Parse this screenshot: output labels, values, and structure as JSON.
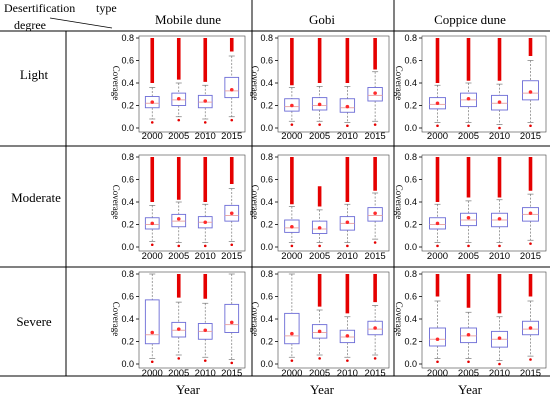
{
  "header": {
    "row_header_label": "Desertification degree",
    "row_header_line1": "Desertification",
    "row_header_line2": "degree",
    "col_header_label": "type"
  },
  "columns": [
    "Mobile dune",
    "Gobi",
    "Coppice dune"
  ],
  "rows": [
    "Light",
    "Moderate",
    "Severe"
  ],
  "y_axis_label": "Coverage",
  "x_axis_label": "Year",
  "colors": {
    "box": "#6b6bd6",
    "median": "#e8a0a0",
    "mean": "#ff2a2a",
    "outlier": "#e50000",
    "whisker": "#777777",
    "grid_line": "#000000",
    "axis": "#000000"
  },
  "chart_data": {
    "type": "box",
    "categories": [
      "2000",
      "2005",
      "2010",
      "2015"
    ],
    "ylim": [
      0.0,
      0.8
    ],
    "yticks": [
      "0.0",
      "0.2",
      "0.4",
      "0.6",
      "0.8"
    ],
    "ylabel": "Coverage",
    "xlabel": "Year",
    "panels": [
      {
        "row": "Light",
        "column": "Mobile dune",
        "boxes": [
          {
            "low": 0.08,
            "q1": 0.18,
            "median": 0.22,
            "mean": 0.23,
            "q3": 0.28,
            "high": 0.36,
            "outlier_from": 0.4,
            "outlier_to": 0.8
          },
          {
            "low": 0.1,
            "q1": 0.2,
            "median": 0.25,
            "mean": 0.26,
            "q3": 0.31,
            "high": 0.4,
            "outlier_from": 0.43,
            "outlier_to": 0.8
          },
          {
            "low": 0.08,
            "q1": 0.18,
            "median": 0.23,
            "mean": 0.24,
            "q3": 0.29,
            "high": 0.38,
            "outlier_from": 0.41,
            "outlier_to": 0.8
          },
          {
            "low": 0.1,
            "q1": 0.27,
            "median": 0.33,
            "mean": 0.34,
            "q3": 0.45,
            "high": 0.64,
            "outlier_from": 0.68,
            "outlier_to": 0.8
          }
        ]
      },
      {
        "row": "Light",
        "column": "Gobi",
        "boxes": [
          {
            "low": 0.06,
            "q1": 0.15,
            "median": 0.19,
            "mean": 0.2,
            "q3": 0.26,
            "high": 0.36,
            "outlier_from": 0.38,
            "outlier_to": 0.8
          },
          {
            "low": 0.06,
            "q1": 0.16,
            "median": 0.2,
            "mean": 0.21,
            "q3": 0.27,
            "high": 0.37,
            "outlier_from": 0.4,
            "outlier_to": 0.8
          },
          {
            "low": 0.05,
            "q1": 0.14,
            "median": 0.18,
            "mean": 0.19,
            "q3": 0.26,
            "high": 0.37,
            "outlier_from": 0.4,
            "outlier_to": 0.8
          },
          {
            "low": 0.06,
            "q1": 0.24,
            "median": 0.29,
            "mean": 0.31,
            "q3": 0.36,
            "high": 0.5,
            "outlier_from": 0.52,
            "outlier_to": 0.8
          }
        ]
      },
      {
        "row": "Light",
        "column": "Coppice dune",
        "boxes": [
          {
            "low": 0.05,
            "q1": 0.17,
            "median": 0.21,
            "mean": 0.22,
            "q3": 0.27,
            "high": 0.38,
            "outlier_from": 0.4,
            "outlier_to": 0.8
          },
          {
            "low": 0.05,
            "q1": 0.19,
            "median": 0.25,
            "mean": 0.26,
            "q3": 0.31,
            "high": 0.4,
            "outlier_from": 0.42,
            "outlier_to": 0.8
          },
          {
            "low": 0.03,
            "q1": 0.16,
            "median": 0.22,
            "mean": 0.23,
            "q3": 0.29,
            "high": 0.39,
            "outlier_from": 0.42,
            "outlier_to": 0.8
          },
          {
            "low": 0.05,
            "q1": 0.25,
            "median": 0.31,
            "mean": 0.32,
            "q3": 0.42,
            "high": 0.6,
            "outlier_from": 0.64,
            "outlier_to": 0.8
          }
        ]
      },
      {
        "row": "Moderate",
        "column": "Mobile dune",
        "boxes": [
          {
            "low": 0.05,
            "q1": 0.16,
            "median": 0.2,
            "mean": 0.21,
            "q3": 0.26,
            "high": 0.37,
            "outlier_from": 0.4,
            "outlier_to": 0.8
          },
          {
            "low": 0.04,
            "q1": 0.18,
            "median": 0.23,
            "mean": 0.25,
            "q3": 0.29,
            "high": 0.4,
            "outlier_from": 0.42,
            "outlier_to": 0.8
          },
          {
            "low": 0.04,
            "q1": 0.17,
            "median": 0.22,
            "mean": 0.22,
            "q3": 0.27,
            "high": 0.38,
            "outlier_from": 0.4,
            "outlier_to": 0.8
          },
          {
            "low": 0.05,
            "q1": 0.23,
            "median": 0.28,
            "mean": 0.3,
            "q3": 0.37,
            "high": 0.52,
            "outlier_from": 0.56,
            "outlier_to": 0.8
          }
        ]
      },
      {
        "row": "Moderate",
        "column": "Gobi",
        "boxes": [
          {
            "low": 0.04,
            "q1": 0.13,
            "median": 0.17,
            "mean": 0.18,
            "q3": 0.24,
            "high": 0.36,
            "outlier_from": 0.38,
            "outlier_to": 0.8
          },
          {
            "low": 0.04,
            "q1": 0.12,
            "median": 0.16,
            "mean": 0.17,
            "q3": 0.23,
            "high": 0.33,
            "outlier_from": 0.36,
            "outlier_to": 0.54
          },
          {
            "low": 0.04,
            "q1": 0.15,
            "median": 0.21,
            "mean": 0.22,
            "q3": 0.27,
            "high": 0.38,
            "outlier_from": 0.4,
            "outlier_to": 0.8
          },
          {
            "low": 0.07,
            "q1": 0.23,
            "median": 0.28,
            "mean": 0.3,
            "q3": 0.35,
            "high": 0.48,
            "outlier_from": 0.5,
            "outlier_to": 0.8
          }
        ]
      },
      {
        "row": "Moderate",
        "column": "Coppice dune",
        "boxes": [
          {
            "low": 0.04,
            "q1": 0.16,
            "median": 0.2,
            "mean": 0.21,
            "q3": 0.26,
            "high": 0.38,
            "outlier_from": 0.4,
            "outlier_to": 0.8
          },
          {
            "low": 0.04,
            "q1": 0.19,
            "median": 0.24,
            "mean": 0.26,
            "q3": 0.3,
            "high": 0.41,
            "outlier_from": 0.44,
            "outlier_to": 0.8
          },
          {
            "low": 0.04,
            "q1": 0.18,
            "median": 0.24,
            "mean": 0.25,
            "q3": 0.3,
            "high": 0.42,
            "outlier_from": 0.44,
            "outlier_to": 0.8
          },
          {
            "low": 0.06,
            "q1": 0.23,
            "median": 0.29,
            "mean": 0.3,
            "q3": 0.35,
            "high": 0.47,
            "outlier_from": 0.5,
            "outlier_to": 0.8
          }
        ]
      },
      {
        "row": "Severe",
        "column": "Mobile dune",
        "boxes": [
          {
            "low": 0.05,
            "q1": 0.18,
            "median": 0.26,
            "mean": 0.28,
            "q3": 0.57,
            "high": 0.8,
            "outlier_from": null,
            "outlier_to": null
          },
          {
            "low": 0.08,
            "q1": 0.24,
            "median": 0.3,
            "mean": 0.31,
            "q3": 0.37,
            "high": 0.55,
            "outlier_from": 0.59,
            "outlier_to": 0.8
          },
          {
            "low": 0.06,
            "q1": 0.22,
            "median": 0.29,
            "mean": 0.3,
            "q3": 0.36,
            "high": 0.54,
            "outlier_from": 0.58,
            "outlier_to": 0.8
          },
          {
            "low": 0.04,
            "q1": 0.28,
            "median": 0.35,
            "mean": 0.37,
            "q3": 0.53,
            "high": 0.8,
            "outlier_from": null,
            "outlier_to": null
          }
        ]
      },
      {
        "row": "Severe",
        "column": "Gobi",
        "boxes": [
          {
            "low": 0.06,
            "q1": 0.18,
            "median": 0.25,
            "mean": 0.27,
            "q3": 0.45,
            "high": 0.8,
            "outlier_from": null,
            "outlier_to": null
          },
          {
            "low": 0.08,
            "q1": 0.23,
            "median": 0.28,
            "mean": 0.29,
            "q3": 0.35,
            "high": 0.48,
            "outlier_from": 0.51,
            "outlier_to": 0.8
          },
          {
            "low": 0.06,
            "q1": 0.19,
            "median": 0.24,
            "mean": 0.25,
            "q3": 0.3,
            "high": 0.42,
            "outlier_from": 0.45,
            "outlier_to": 0.8
          },
          {
            "low": 0.08,
            "q1": 0.26,
            "median": 0.31,
            "mean": 0.32,
            "q3": 0.38,
            "high": 0.52,
            "outlier_from": 0.55,
            "outlier_to": 0.8
          }
        ]
      },
      {
        "row": "Severe",
        "column": "Coppice dune",
        "boxes": [
          {
            "low": 0.05,
            "q1": 0.16,
            "median": 0.22,
            "mean": 0.22,
            "q3": 0.32,
            "high": 0.56,
            "outlier_from": 0.6,
            "outlier_to": 0.8
          },
          {
            "low": 0.05,
            "q1": 0.19,
            "median": 0.25,
            "mean": 0.26,
            "q3": 0.32,
            "high": 0.46,
            "outlier_from": 0.5,
            "outlier_to": 0.8
          },
          {
            "low": 0.03,
            "q1": 0.15,
            "median": 0.22,
            "mean": 0.23,
            "q3": 0.29,
            "high": 0.42,
            "outlier_from": 0.45,
            "outlier_to": 0.8
          },
          {
            "low": 0.07,
            "q1": 0.26,
            "median": 0.31,
            "mean": 0.32,
            "q3": 0.38,
            "high": 0.56,
            "outlier_from": 0.6,
            "outlier_to": 0.8
          }
        ]
      }
    ]
  }
}
